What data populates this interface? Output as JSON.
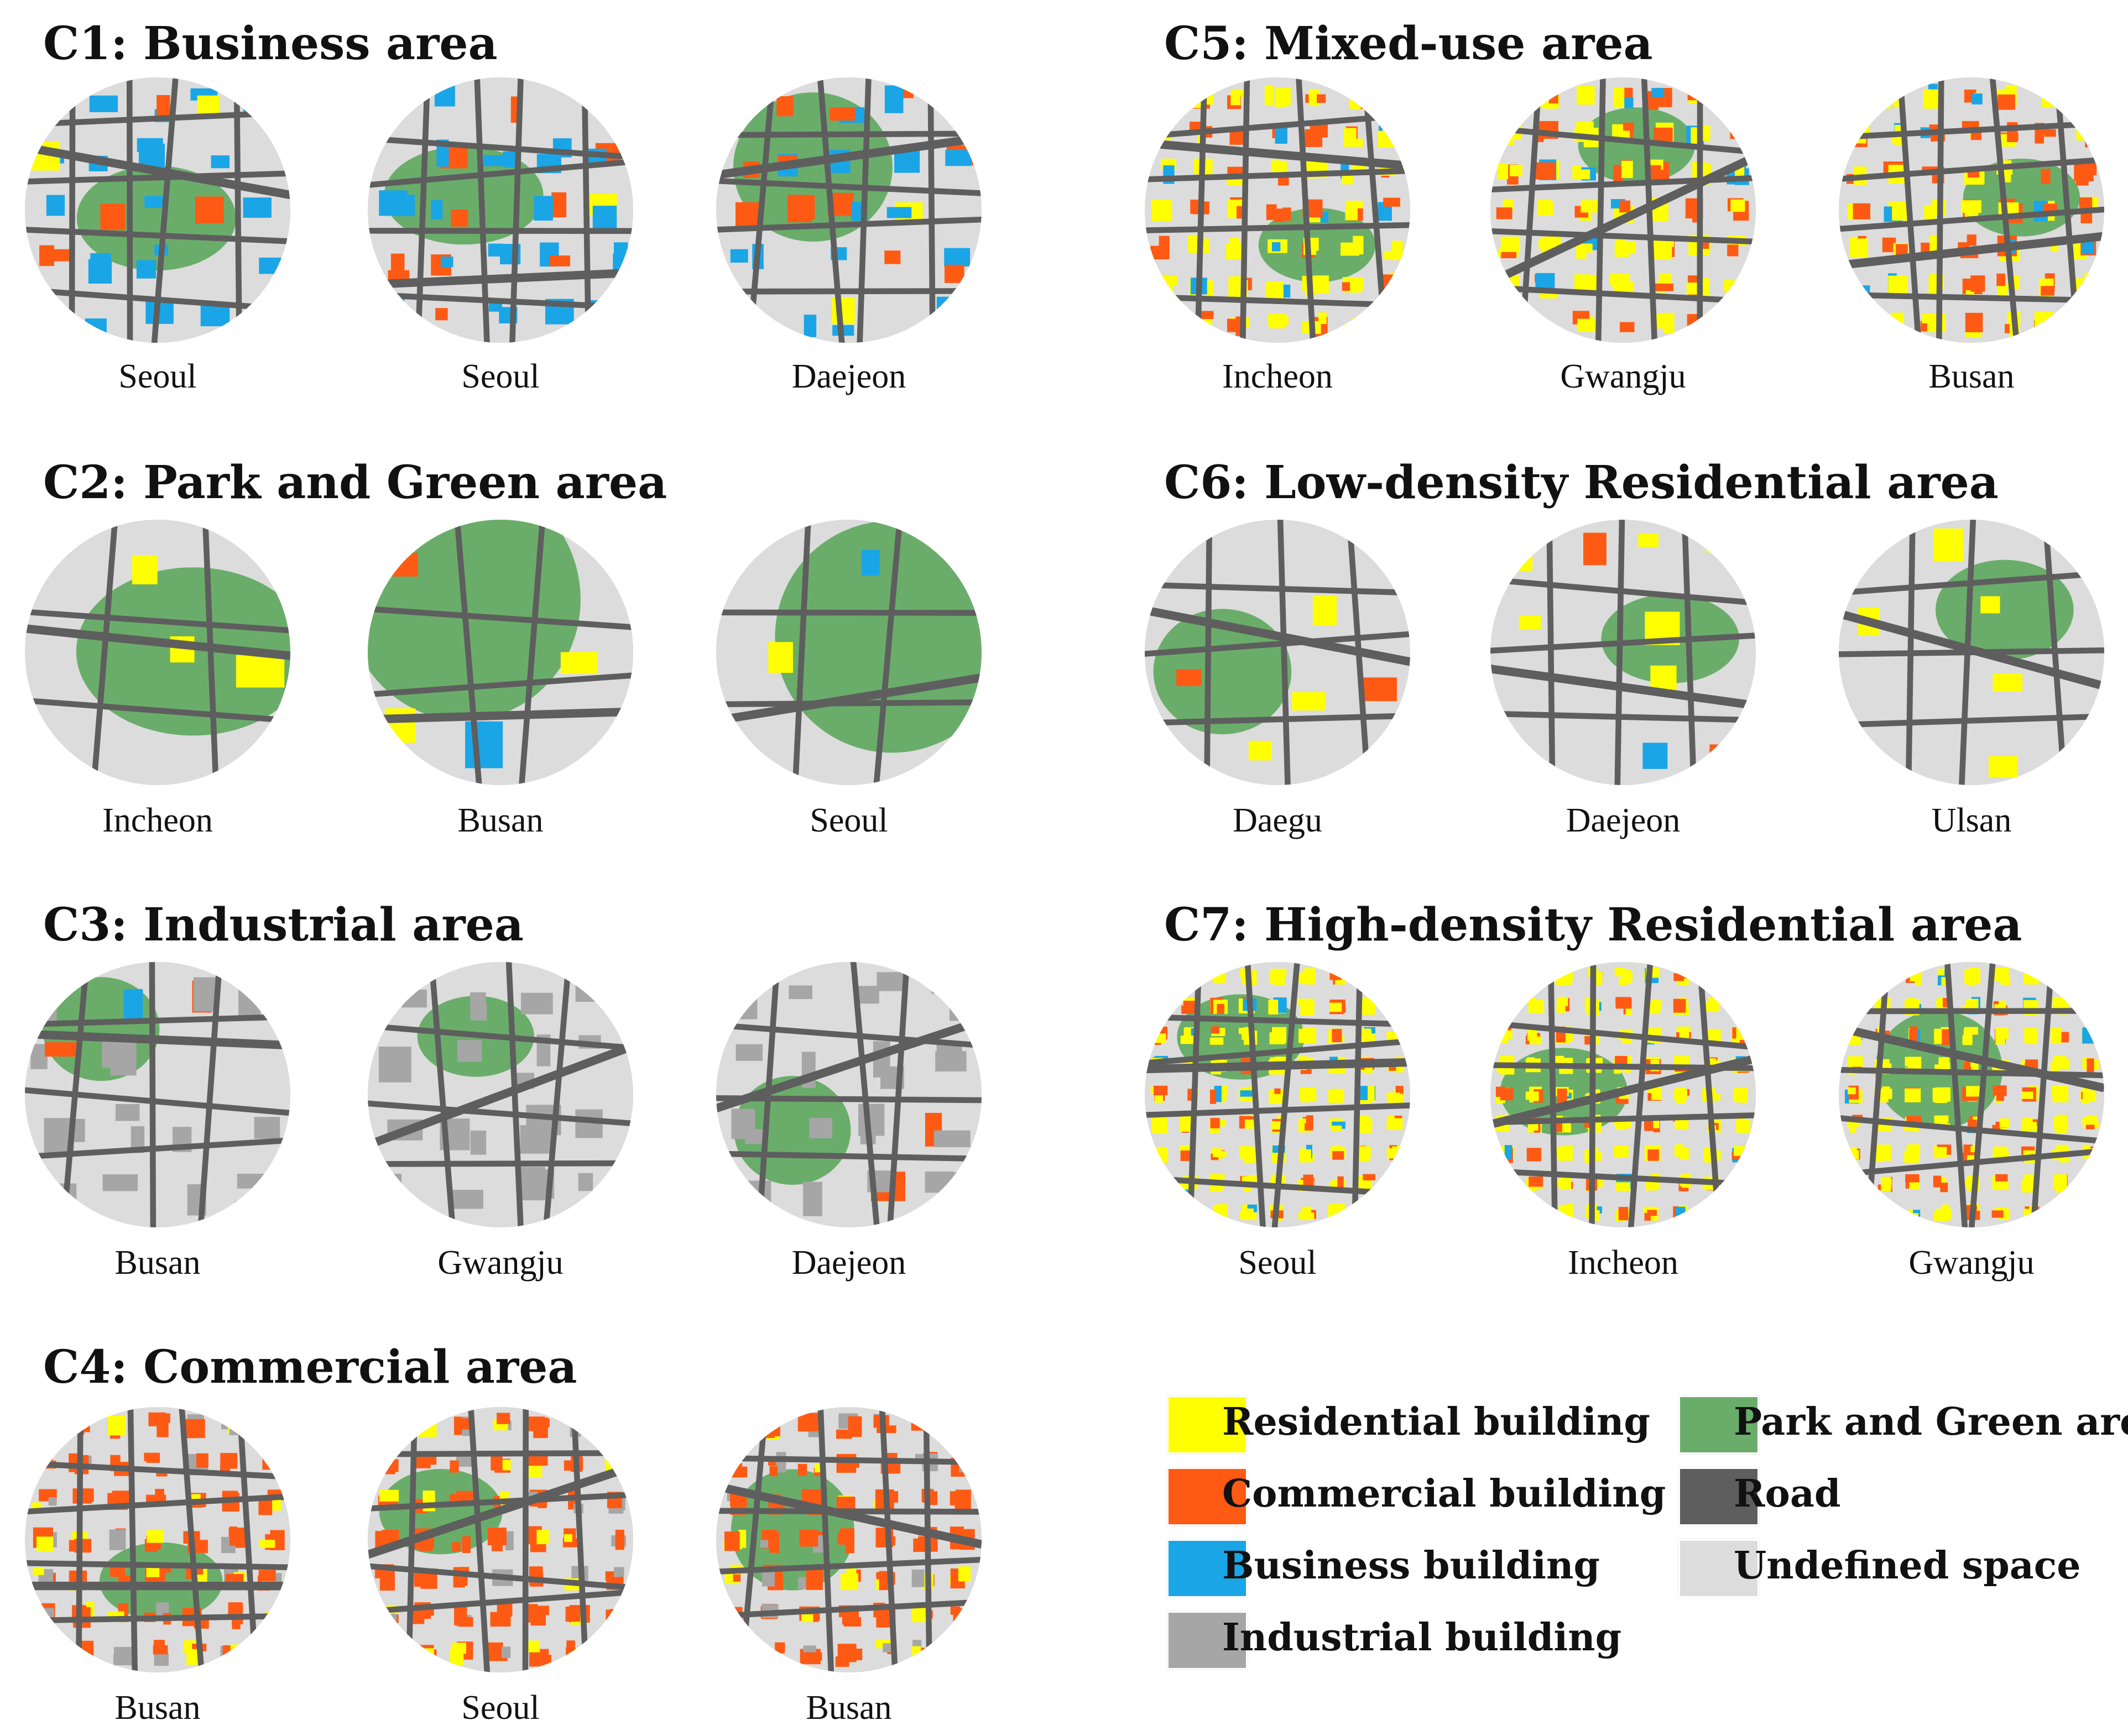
{
  "palette": {
    "residential": "#ffff00",
    "commercial": "#ff5a14",
    "business": "#1aa5e6",
    "industrial": "#a6a6a6",
    "park": "#6aad6a",
    "road": "#5e5e5e",
    "undefined": "#dcdcdc"
  },
  "clusters": [
    {
      "title": "C1: Business area",
      "cities": [
        "Seoul",
        "Seoul",
        "Daejeon"
      ]
    },
    {
      "title": "C2: Park and Green area",
      "cities": [
        "Incheon",
        "Busan",
        "Seoul"
      ]
    },
    {
      "title": "C3: Industrial area",
      "cities": [
        "Busan",
        "Gwangju",
        "Daejeon"
      ]
    },
    {
      "title": "C4: Commercial area",
      "cities": [
        "Busan",
        "Seoul",
        "Busan"
      ]
    },
    {
      "title": "C5: Mixed-use area",
      "cities": [
        "Incheon",
        "Gwangju",
        "Busan"
      ]
    },
    {
      "title": "C6: Low-density Residential area",
      "cities": [
        "Daegu",
        "Daejeon",
        "Ulsan"
      ]
    },
    {
      "title": "C7: High-density Residential area",
      "cities": [
        "Seoul",
        "Incheon",
        "Gwangju"
      ]
    }
  ],
  "legend": [
    {
      "label": "Residential building",
      "color": "#ffff00"
    },
    {
      "label": "Commercial building",
      "color": "#ff5a14"
    },
    {
      "label": "Business building",
      "color": "#1aa5e6"
    },
    {
      "label": "Industrial building",
      "color": "#a6a6a6"
    },
    {
      "label": "Park and Green area",
      "color": "#6aad6a"
    },
    {
      "label": "Road",
      "color": "#5e5e5e"
    },
    {
      "label": "Undefined space",
      "color": "#dcdcdc"
    }
  ]
}
